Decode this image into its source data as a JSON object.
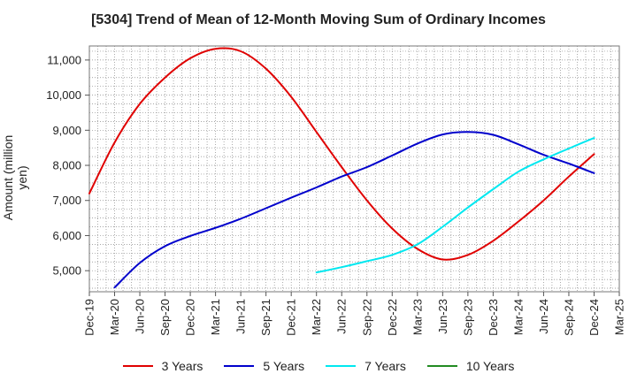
{
  "chart_data": {
    "type": "line",
    "title": "[5304]  Trend of Mean of 12-Month Moving Sum of Ordinary Incomes",
    "xlabel": "",
    "ylabel": "Amount (million yen)",
    "x": [
      "Dec-19",
      "Mar-20",
      "Jun-20",
      "Sep-20",
      "Dec-20",
      "Mar-21",
      "Jun-21",
      "Sep-21",
      "Dec-21",
      "Mar-22",
      "Jun-22",
      "Sep-22",
      "Dec-22",
      "Mar-23",
      "Jun-23",
      "Sep-23",
      "Dec-23",
      "Mar-24",
      "Jun-24",
      "Sep-24",
      "Dec-24",
      "Mar-25"
    ],
    "ylim": [
      4400,
      11400
    ],
    "yticks": [
      5000,
      6000,
      7000,
      8000,
      9000,
      10000,
      11000
    ],
    "ytick_labels": [
      "5,000",
      "6,000",
      "7,000",
      "8,000",
      "9,000",
      "10,000",
      "11,000"
    ],
    "grid": true,
    "legend": "bottom",
    "series": [
      {
        "name": "3 Years",
        "color": "#e00000",
        "values": [
          7200,
          8650,
          9750,
          10500,
          11050,
          11320,
          11250,
          10750,
          9950,
          8950,
          7950,
          7000,
          6200,
          5620,
          5320,
          5450,
          5850,
          6400,
          7000,
          7680,
          8320,
          null
        ]
      },
      {
        "name": "5 Years",
        "color": "#0000cc",
        "values": [
          null,
          4520,
          5220,
          5700,
          5990,
          6220,
          6480,
          6780,
          7080,
          7370,
          7680,
          7950,
          8280,
          8620,
          8880,
          8950,
          8870,
          8600,
          8300,
          8050,
          7780,
          null
        ]
      },
      {
        "name": "7 Years",
        "color": "#00e8f0",
        "values": [
          null,
          null,
          null,
          null,
          null,
          null,
          null,
          null,
          null,
          4950,
          5100,
          5270,
          5450,
          5750,
          6250,
          6800,
          7320,
          7820,
          8170,
          8480,
          8780,
          null
        ]
      },
      {
        "name": "10 Years",
        "color": "#228b22",
        "values": [
          null,
          null,
          null,
          null,
          null,
          null,
          null,
          null,
          null,
          null,
          null,
          null,
          null,
          null,
          null,
          null,
          null,
          null,
          null,
          null,
          null,
          null
        ]
      }
    ]
  }
}
